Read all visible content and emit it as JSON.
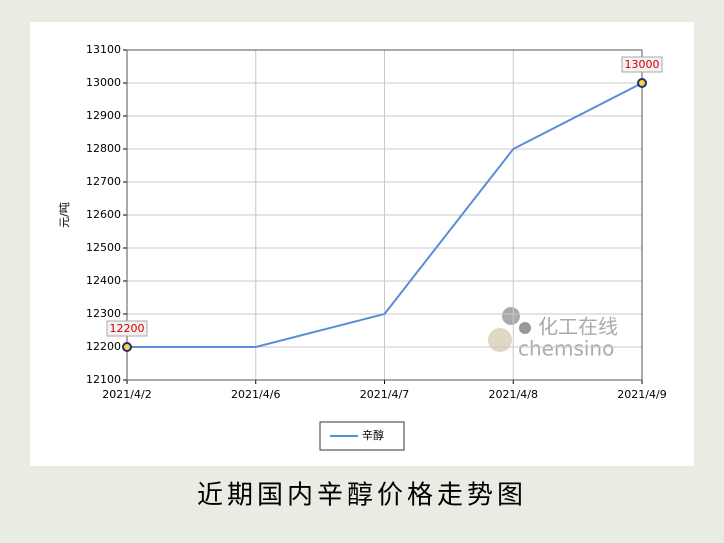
{
  "chart_data": {
    "type": "line",
    "caption": "近期国内辛醇价格走势图",
    "y_label": "元/吨",
    "categories": [
      "2021/4/2",
      "2021/4/6",
      "2021/4/7",
      "2021/4/8",
      "2021/4/9"
    ],
    "series": [
      {
        "name": "辛醇",
        "color": "#5b8ed6",
        "values": [
          12200,
          12200,
          12300,
          12800,
          13000
        ],
        "value_labels": [
          "12200",
          null,
          null,
          null,
          "13000"
        ]
      }
    ],
    "ylim": [
      12100,
      13100
    ],
    "yticks": [
      12100,
      12200,
      12300,
      12400,
      12500,
      12600,
      12700,
      12800,
      12900,
      13000,
      13100
    ],
    "grid": true,
    "legend": "bottom",
    "watermark": [
      "化工在线",
      "chemsino"
    ]
  }
}
